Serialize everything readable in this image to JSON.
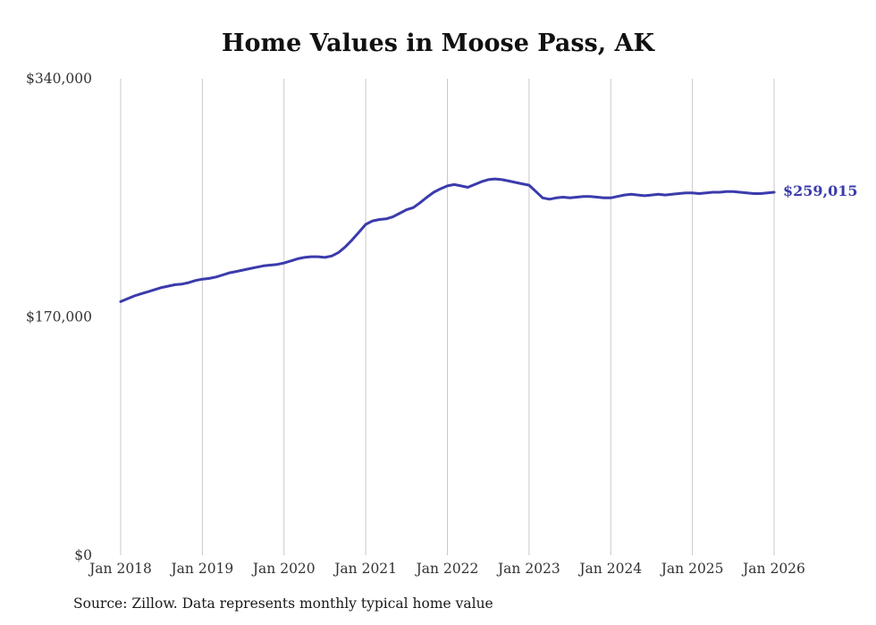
{
  "title": "Home Values in Moose Pass, AK",
  "source_note": "Source: Zillow. Data represents monthly typical home value",
  "end_label": "$259,015",
  "colors": {
    "line": "#3b3bac",
    "grid": "#c9c9c9",
    "tick_text": "#333333",
    "end_label": "#3b3bac",
    "title_text": "#111111",
    "background": "#ffffff"
  },
  "chart_data": {
    "type": "line",
    "title": "Home Values in Moose Pass, AK",
    "series_name": "Typical home value",
    "frequency": "monthly",
    "x_start": "Jan 2018",
    "x_end": "Jan 2026",
    "x_tick_labels": [
      "Jan 2018",
      "Jan 2019",
      "Jan 2020",
      "Jan 2021",
      "Jan 2022",
      "Jan 2023",
      "Jan 2024",
      "Jan 2025",
      "Jan 2026"
    ],
    "y_ticks": [
      {
        "value": 0,
        "label": "$0"
      },
      {
        "value": 170000,
        "label": "$170,000"
      },
      {
        "value": 340000,
        "label": "$340,000"
      }
    ],
    "ylim": [
      0,
      340000
    ],
    "grid": "vertical-only",
    "legend": "none",
    "end_value": 259015,
    "values": [
      181000,
      183000,
      185000,
      186500,
      188000,
      189500,
      191000,
      192000,
      193000,
      193500,
      194500,
      196000,
      197000,
      197500,
      198500,
      200000,
      201500,
      202500,
      203500,
      204500,
      205500,
      206500,
      207000,
      207500,
      208500,
      210000,
      211500,
      212500,
      213000,
      213000,
      212500,
      213500,
      216000,
      220000,
      225000,
      230500,
      236000,
      238500,
      239500,
      240000,
      241500,
      244000,
      246500,
      248000,
      251500,
      255500,
      259000,
      261500,
      263500,
      264500,
      263500,
      262500,
      264500,
      266500,
      268000,
      268500,
      268000,
      267000,
      266000,
      265000,
      264000,
      259500,
      255000,
      254000,
      255000,
      255500,
      255000,
      255500,
      256000,
      256000,
      255500,
      255000,
      255000,
      256000,
      257000,
      257500,
      257000,
      256500,
      257000,
      257500,
      257000,
      257500,
      258000,
      258500,
      258500,
      258000,
      258500,
      259000,
      259000,
      259500,
      259500,
      259000,
      258500,
      258000,
      258000,
      258500,
      259015
    ]
  }
}
